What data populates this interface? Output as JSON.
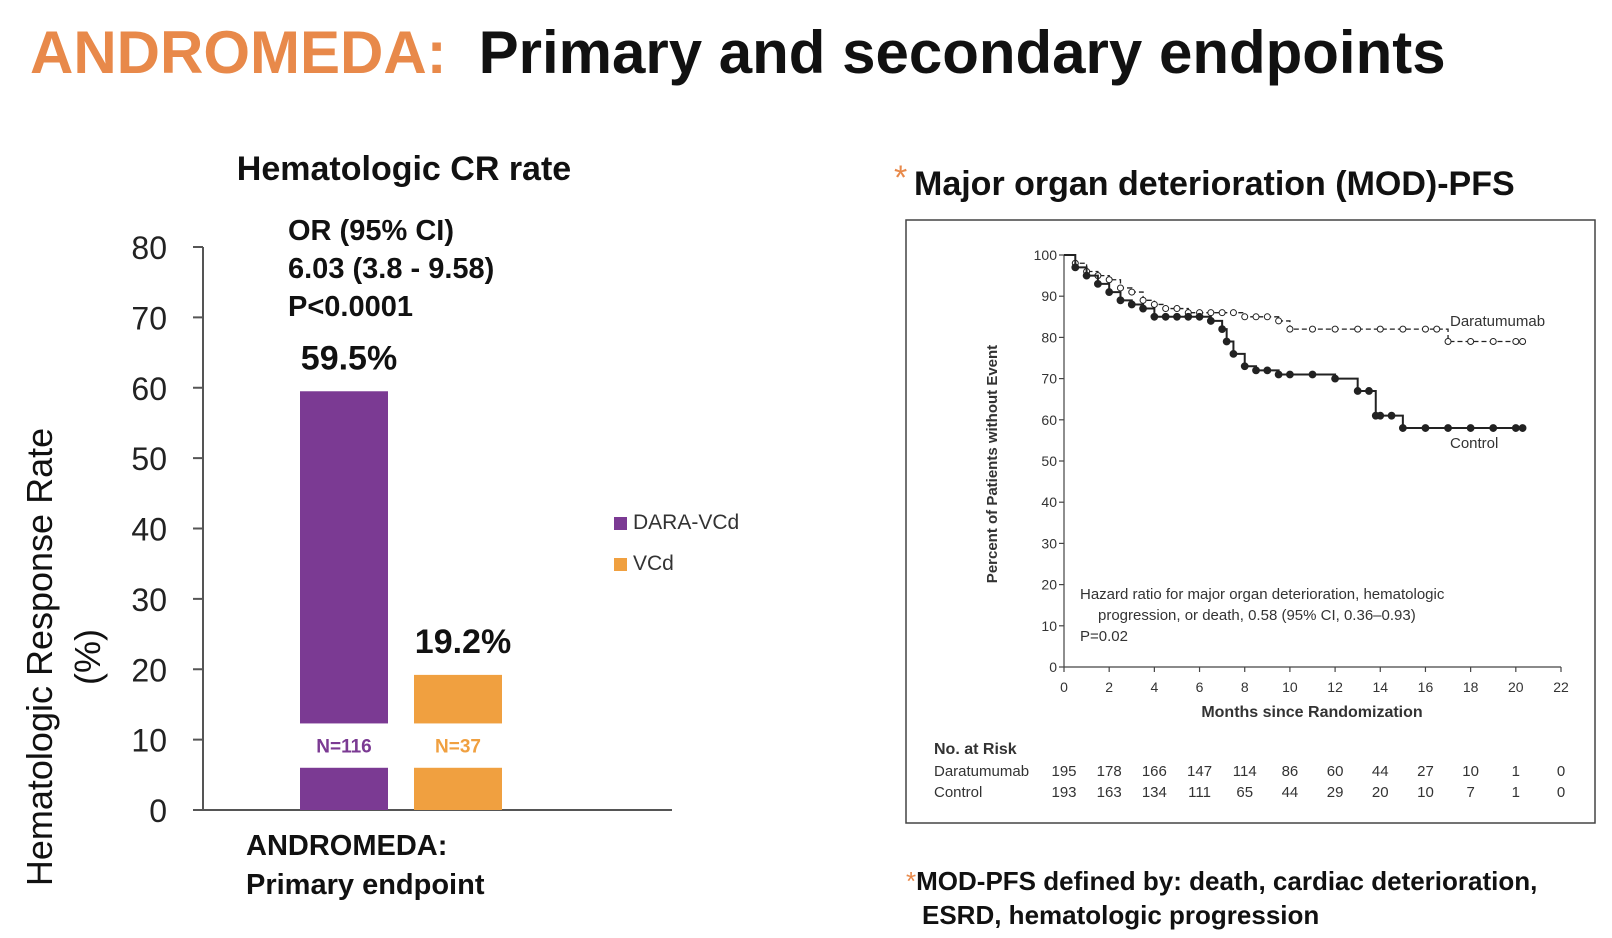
{
  "slide": {
    "title_accent": "ANDROMEDA:",
    "title_main": "Primary and secondary endpoints",
    "footnote_star": "*",
    "footnote_line1": "MOD-PFS defined by:  death, cardiac deterioration,",
    "footnote_line2": "ESRD, hematologic progression"
  },
  "colors": {
    "accent": "#e8894a",
    "dara": "#7b3a93",
    "vcd": "#f0a040"
  },
  "chart_data": [
    {
      "type": "bar",
      "title": "Hematologic CR rate",
      "ylabel_line1": "Hematologic Response Rate",
      "ylabel_line2": "(%)",
      "ylim": [
        0,
        80
      ],
      "yticks": [
        0,
        10,
        20,
        30,
        40,
        50,
        60,
        70,
        80
      ],
      "categories": [
        "ANDROMEDA: Primary endpoint"
      ],
      "xlabel_line1": "ANDROMEDA:",
      "xlabel_line2": "Primary endpoint",
      "series": [
        {
          "name": "DARA-VCd",
          "values": [
            59.5
          ],
          "label": "59.5%",
          "n_label": "N=116"
        },
        {
          "name": "VCd",
          "values": [
            19.2
          ],
          "label": "19.2%",
          "n_label": "N=37"
        }
      ],
      "annotation": [
        "OR (95% CI)",
        "6.03 (3.8 - 9.58)",
        "P<0.0001"
      ],
      "legend": "right"
    },
    {
      "type": "line",
      "title": "Major organ deterioration (MOD)-PFS",
      "title_star": "*",
      "xlabel": "Months since Randomization",
      "ylabel": "Percent of Patients without Event",
      "xlim": [
        0,
        22
      ],
      "ylim": [
        0,
        100
      ],
      "xticks": [
        0,
        2,
        4,
        6,
        8,
        10,
        12,
        14,
        16,
        18,
        20,
        22
      ],
      "yticks": [
        0,
        10,
        20,
        30,
        40,
        50,
        60,
        70,
        80,
        90,
        100
      ],
      "series": [
        {
          "name": "Daratumumab",
          "style": "dashed-open",
          "x": [
            0,
            0.5,
            1,
            1.5,
            2,
            2.5,
            3,
            3.5,
            4,
            4.5,
            5,
            5.5,
            6,
            6.5,
            7,
            7.5,
            8,
            8.5,
            9,
            9.5,
            10,
            11,
            12,
            13,
            14,
            15,
            16,
            16.5,
            17,
            18,
            19,
            20,
            20.3
          ],
          "y": [
            100,
            98,
            96,
            95,
            94,
            92,
            91,
            89,
            88,
            87,
            87,
            86,
            86,
            86,
            86,
            86,
            85,
            85,
            85,
            84,
            82,
            82,
            82,
            82,
            82,
            82,
            82,
            82,
            79,
            79,
            79,
            79,
            79
          ]
        },
        {
          "name": "Control",
          "style": "solid-filled",
          "x": [
            0,
            0.5,
            1,
            1.5,
            2,
            2.5,
            3,
            3.5,
            4,
            4.5,
            5,
            5.5,
            6,
            6.5,
            7,
            7.2,
            7.5,
            8,
            8.5,
            9,
            9.5,
            10,
            11,
            12,
            13,
            13.5,
            13.8,
            14,
            14.5,
            15,
            16,
            17,
            18,
            19,
            20,
            20.3
          ],
          "y": [
            100,
            97,
            95,
            93,
            91,
            89,
            88,
            87,
            85,
            85,
            85,
            85,
            85,
            84,
            82,
            79,
            76,
            73,
            72,
            72,
            71,
            71,
            71,
            70,
            67,
            67,
            61,
            61,
            61,
            58,
            58,
            58,
            58,
            58,
            58,
            58
          ]
        }
      ],
      "annotation": [
        "Hazard ratio for major organ deterioration, hematologic",
        "progression, or death, 0.58 (95% CI, 0.36–0.93)",
        "P=0.02"
      ],
      "risk_table": {
        "header": "No. at Risk",
        "rows": [
          {
            "label": "Daratumumab",
            "values": [
              "195",
              "178",
              "166",
              "147",
              "114",
              "86",
              "60",
              "44",
              "27",
              "10",
              "1",
              "0"
            ]
          },
          {
            "label": "Control",
            "values": [
              "193",
              "163",
              "134",
              "111",
              "65",
              "44",
              "29",
              "20",
              "10",
              "7",
              "1",
              "0"
            ]
          }
        ]
      }
    }
  ]
}
